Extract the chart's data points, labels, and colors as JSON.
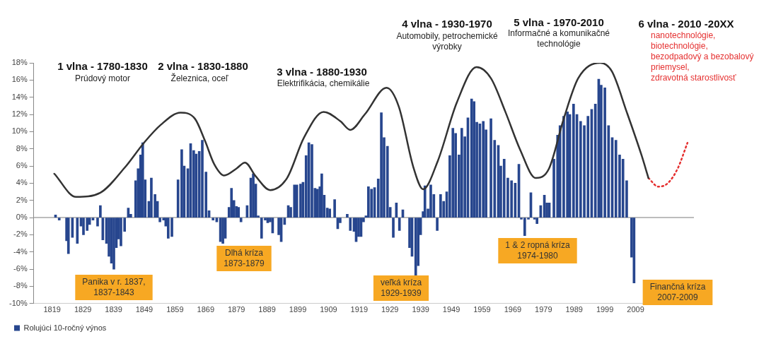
{
  "chart_data": {
    "type": "bar",
    "xlim": [
      1813,
      2028
    ],
    "xticks": [
      1819,
      1829,
      1839,
      1849,
      1859,
      1869,
      1879,
      1889,
      1899,
      1909,
      1919,
      1929,
      1939,
      1949,
      1959,
      1969,
      1979,
      1989,
      1999,
      2009
    ],
    "ylim": [
      -10,
      18
    ],
    "yticks": [
      {
        "value": -10,
        "label": "-10%"
      },
      {
        "value": -8,
        "label": "-8%"
      },
      {
        "value": -6,
        "label": "-6%"
      },
      {
        "value": -4,
        "label": "-4%"
      },
      {
        "value": -2,
        "label": "-2%"
      },
      {
        "value": 0,
        "label": "0%"
      },
      {
        "value": 2,
        "label": "2%"
      },
      {
        "value": 4,
        "label": "4%"
      },
      {
        "value": 6,
        "label": "6%"
      },
      {
        "value": 8,
        "label": "8%"
      },
      {
        "value": 10,
        "label": "10%"
      },
      {
        "value": 12,
        "label": "12%"
      },
      {
        "value": 14,
        "label": "14%"
      },
      {
        "value": 16,
        "label": "16%"
      },
      {
        "value": 18,
        "label": "18%"
      }
    ],
    "grid": false,
    "legend": "bottom left",
    "marker": "none",
    "ref_lines": [
      {
        "axis": "y",
        "value": 0,
        "color": "#a6a6a6"
      }
    ],
    "series": [
      {
        "name": "Rolujúci 10-ročný výnos",
        "color": "#27468e",
        "x": [
          1820.1,
          1821.3,
          1823.7,
          1824.3,
          1825.6,
          1827.2,
          1828.4,
          1829.2,
          1830.4,
          1831.2,
          1832.3,
          1833.8,
          1834.7,
          1835.5,
          1836.7,
          1837.5,
          1838.3,
          1839.1,
          1839.9,
          1840.6,
          1841.4,
          1842.6,
          1843.8,
          1844.6,
          1846.2,
          1847.0,
          1847.8,
          1848.5,
          1849.3,
          1850.5,
          1851.3,
          1852.5,
          1853.3,
          1854.1,
          1855.3,
          1856.0,
          1856.8,
          1858.0,
          1860.0,
          1861.2,
          1862.0,
          1863.2,
          1864.1,
          1865.1,
          1865.9,
          1866.9,
          1867.9,
          1869.1,
          1870.1,
          1871.4,
          1872.6,
          1873.8,
          1874.6,
          1875.4,
          1876.6,
          1877.4,
          1878.2,
          1879.0,
          1879.7,
          1880.5,
          1882.5,
          1883.7,
          1884.5,
          1885.3,
          1886.1,
          1887.2,
          1888.4,
          1889.2,
          1890.0,
          1890.8,
          1892.8,
          1893.6,
          1894.7,
          1895.9,
          1896.7,
          1897.9,
          1898.7,
          1899.9,
          1900.7,
          1901.7,
          1902.6,
          1903.6,
          1904.6,
          1905.4,
          1906.2,
          1906.8,
          1907.6,
          1908.6,
          1909.4,
          1911.0,
          1912.0,
          1912.8,
          1915.1,
          1916.1,
          1917.3,
          1918.0,
          1918.8,
          1919.6,
          1920.4,
          1921.2,
          1922.0,
          1923.0,
          1924.0,
          1925.2,
          1926.2,
          1927.1,
          1928.2,
          1929.1,
          1930.1,
          1931.1,
          1932.1,
          1933.2,
          1935.4,
          1936.2,
          1937.4,
          1938.2,
          1939.0,
          1939.8,
          1940.4,
          1941.4,
          1942.3,
          1943.3,
          1944.4,
          1945.5,
          1946.5,
          1947.5,
          1948.5,
          1949.5,
          1950.4,
          1951.5,
          1952.4,
          1953.4,
          1954.4,
          1955.6,
          1956.4,
          1957.3,
          1958.3,
          1959.4,
          1960.3,
          1961.9,
          1963.1,
          1964.3,
          1965.1,
          1966.2,
          1967.4,
          1968.6,
          1969.8,
          1971.0,
          1971.8,
          1972.9,
          1974.1,
          1974.9,
          1976.1,
          1976.9,
          1978.1,
          1979.3,
          1980.1,
          1980.9,
          1982.4,
          1983.6,
          1984.4,
          1985.6,
          1986.8,
          1987.6,
          1988.8,
          1989.9,
          1991.1,
          1992.3,
          1993.5,
          1994.7,
          1995.9,
          1997.0,
          1997.8,
          1999.0,
          2000.2,
          2001.4,
          2002.6,
          2003.8,
          2004.9,
          2006.1,
          2007.7,
          2008.5
        ],
        "values": [
          0.3,
          -0.3,
          -2.7,
          -4.2,
          -2.3,
          -3.0,
          -1.0,
          -2.0,
          -1.5,
          -0.8,
          -0.3,
          -1.0,
          1.4,
          -2.6,
          -3.0,
          -4.5,
          -5.3,
          -6.0,
          -3.5,
          -2.5,
          -3.3,
          -1.6,
          1.1,
          0.4,
          4.3,
          5.7,
          7.3,
          8.7,
          4.4,
          1.9,
          4.6,
          2.7,
          1.9,
          -0.5,
          -0.3,
          -1.0,
          -2.4,
          -2.2,
          4.4,
          7.9,
          6.0,
          5.7,
          8.6,
          7.8,
          7.4,
          7.7,
          9.0,
          5.3,
          0.8,
          -0.3,
          -0.5,
          -2.8,
          -3.0,
          -2.4,
          1.2,
          3.4,
          2.0,
          1.3,
          1.2,
          -0.5,
          1.4,
          4.6,
          5.1,
          3.9,
          0.2,
          -2.4,
          -0.3,
          -0.6,
          -0.5,
          -1.8,
          -2.0,
          -2.8,
          -0.8,
          1.4,
          1.2,
          3.8,
          3.8,
          3.9,
          4.1,
          7.2,
          8.7,
          8.5,
          3.4,
          3.3,
          3.6,
          5.1,
          2.6,
          1.1,
          1.0,
          2.1,
          -1.3,
          -0.6,
          0.4,
          -1.5,
          -1.6,
          -2.8,
          -2.2,
          -2.2,
          -0.5,
          0.2,
          3.6,
          3.3,
          3.5,
          4.5,
          12.2,
          9.3,
          8.3,
          1.2,
          -2.3,
          1.7,
          -1.5,
          0.9,
          -3.5,
          -4.5,
          -6.7,
          -5.6,
          -2.0,
          0.7,
          3.7,
          1.0,
          3.8,
          2.7,
          -1.5,
          2.7,
          1.9,
          3.0,
          7.2,
          10.4,
          9.8,
          7.3,
          10.4,
          9.4,
          11.6,
          13.8,
          13.5,
          11.1,
          10.9,
          11.2,
          10.2,
          11.5,
          9.0,
          8.4,
          6.0,
          6.8,
          4.6,
          4.3,
          4.0,
          6.2,
          -0.2,
          -2.1,
          -0.2,
          2.9,
          -0.2,
          -0.7,
          1.4,
          2.6,
          1.7,
          1.7,
          6.8,
          9.6,
          10.7,
          11.8,
          12.3,
          12.0,
          13.2,
          12.0,
          11.2,
          10.7,
          11.8,
          12.6,
          13.2,
          16.1,
          15.4,
          15.1,
          10.7,
          9.3,
          9.0,
          7.3,
          6.8,
          4.3,
          -4.6,
          -7.6
        ]
      },
      {
        "type": "line",
        "color": "#333333",
        "x": [
          1819.7,
          1826.8,
          1834.7,
          1842.6,
          1848.9,
          1854.4,
          1860.8,
          1865.5,
          1868.7,
          1871.8,
          1875.0,
          1879.0,
          1881.8,
          1885.3,
          1890.0,
          1895.5,
          1901.0,
          1907.4,
          1912.9,
          1916.1,
          1920.8,
          1927.9,
          1931.9,
          1936.6,
          1939.8,
          1944.5,
          1950.8,
          1957.2,
          1961.9,
          1966.6,
          1971.4,
          1976.5,
          1980.8,
          1985.6,
          1990.3,
          1997.5,
          2001.3,
          2006.1,
          2010.9,
          2013.2
        ],
        "values": [
          5.1,
          2.4,
          2.9,
          5.8,
          8.7,
          10.8,
          12.2,
          11.5,
          9.0,
          6.2,
          4.9,
          5.7,
          6.4,
          4.8,
          3.2,
          4.6,
          9.3,
          12.3,
          11.2,
          10.2,
          12.0,
          15.1,
          12.9,
          5.9,
          3.3,
          6.5,
          13.4,
          17.5,
          16.2,
          12.3,
          7.9,
          4.6,
          5.7,
          11.5,
          16.2,
          18.0,
          17.0,
          12.3,
          7.3,
          4.6
        ]
      },
      {
        "type": "line",
        "color": "#e53030",
        "line_style": "dotted",
        "x": [
          2013.2,
          2016.4,
          2019.5,
          2022.7,
          2025.9
        ],
        "values": [
          4.6,
          3.6,
          4.0,
          5.7,
          8.7
        ]
      }
    ],
    "annotations": [
      "1 vlna - 1780-1830",
      "Prúdový motor",
      "2 vlna - 1830-1880",
      "Železnica, oceľ",
      "3 vlna - 1880-1930",
      "Elektrifikácia, chemikálie",
      "4 vlna - 1930-1970",
      "Automobily, petrochemické\nvýrobky",
      "5 vlna - 1970-2010",
      "Informačné a komunikačné\ntechnológie",
      "6 vlna - 2010 -20XX",
      "nanotechnológie,\nbiotechnológie,\nbezodpadový a bezobalový\npriemysel,\nzdravotná starostlivosť",
      "Panika v r. 1837,\n1837-1843",
      "Dlhá kríza\n1873-1879",
      "veľká kríza\n1929-1939",
      "1 & 2 ropná kríza\n1974-1980",
      "Finančná kríza\n2007-2009"
    ]
  }
}
